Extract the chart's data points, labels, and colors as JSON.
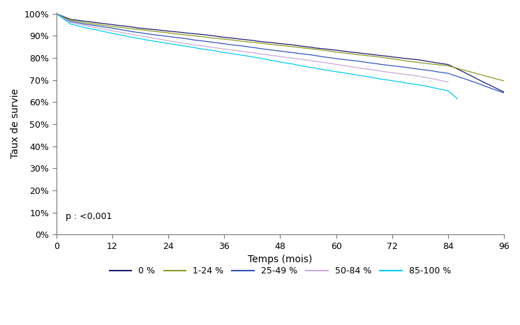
{
  "xlabel": "Temps (mois)",
  "ylabel": "Taux de survie",
  "xlim": [
    0,
    96
  ],
  "ylim": [
    0,
    1.005
  ],
  "xticks": [
    0,
    12,
    24,
    36,
    48,
    60,
    72,
    84,
    96
  ],
  "yticks": [
    0.0,
    0.1,
    0.2,
    0.3,
    0.4,
    0.5,
    0.6,
    0.7,
    0.8,
    0.9,
    1.0
  ],
  "pvalue_text": "p : <0,001",
  "background_color": "#ffffff",
  "series": [
    {
      "label": "0 %",
      "color": "#1c1c6e",
      "waypoints_x": [
        0,
        3,
        6,
        12,
        18,
        24,
        30,
        36,
        42,
        48,
        54,
        60,
        66,
        72,
        78,
        84,
        90,
        96
      ],
      "waypoints_y": [
        1.0,
        0.975,
        0.968,
        0.953,
        0.941,
        0.929,
        0.917,
        0.905,
        0.893,
        0.881,
        0.869,
        0.857,
        0.844,
        0.831,
        0.818,
        0.8,
        0.74,
        0.68
      ]
    },
    {
      "label": "1-24 %",
      "color": "#8b9a20",
      "waypoints_x": [
        0,
        3,
        6,
        12,
        18,
        24,
        30,
        36,
        42,
        48,
        54,
        60,
        66,
        72,
        78,
        84,
        90,
        96
      ],
      "waypoints_y": [
        1.0,
        0.972,
        0.963,
        0.947,
        0.934,
        0.921,
        0.909,
        0.897,
        0.885,
        0.873,
        0.861,
        0.849,
        0.836,
        0.824,
        0.812,
        0.8,
        0.768,
        0.737
      ]
    },
    {
      "label": "25-49 %",
      "color": "#3355bb",
      "waypoints_x": [
        0,
        3,
        6,
        12,
        18,
        24,
        30,
        36,
        42,
        48,
        54,
        60,
        66,
        72,
        78,
        84,
        90,
        96
      ],
      "waypoints_y": [
        1.0,
        0.966,
        0.955,
        0.937,
        0.921,
        0.906,
        0.892,
        0.878,
        0.864,
        0.85,
        0.836,
        0.821,
        0.807,
        0.793,
        0.779,
        0.763,
        0.722,
        0.678
      ]
    },
    {
      "label": "50-84 %",
      "color": "#c8a8d8",
      "waypoints_x": [
        0,
        3,
        6,
        12,
        18,
        24,
        30,
        36,
        42,
        48,
        54,
        60,
        66,
        72,
        78,
        84
      ],
      "waypoints_y": [
        1.0,
        0.963,
        0.95,
        0.929,
        0.91,
        0.893,
        0.876,
        0.86,
        0.845,
        0.83,
        0.815,
        0.799,
        0.784,
        0.769,
        0.754,
        0.731
      ]
    },
    {
      "label": "85-100 %",
      "color": "#00ccee",
      "waypoints_x": [
        0,
        3,
        6,
        12,
        18,
        24,
        30,
        36,
        42,
        48,
        54,
        60,
        66,
        72,
        78,
        84,
        86
      ],
      "waypoints_y": [
        1.0,
        0.955,
        0.94,
        0.916,
        0.894,
        0.874,
        0.855,
        0.837,
        0.819,
        0.8,
        0.781,
        0.762,
        0.744,
        0.726,
        0.708,
        0.685,
        0.65
      ]
    }
  ]
}
